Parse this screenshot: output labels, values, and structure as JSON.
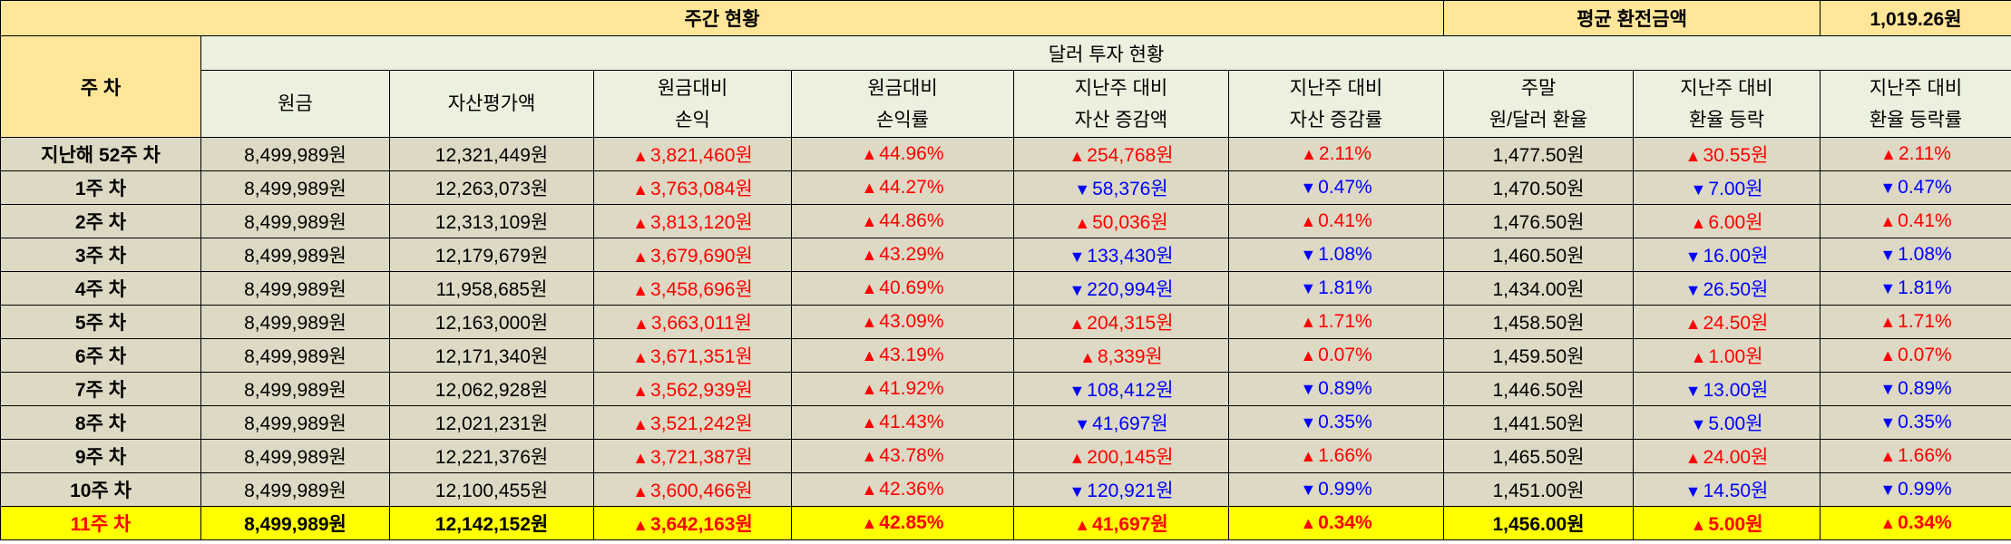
{
  "header": {
    "weekly_status": "주간 현황",
    "avg_exchange_label": "평균 환전금액",
    "avg_exchange_value": "1,019.26원",
    "week_col": "주 차",
    "dollar_invest_status": "달러 투자 현황"
  },
  "columns": [
    {
      "l1": "원금",
      "l2": ""
    },
    {
      "l1": "자산평가액",
      "l2": ""
    },
    {
      "l1": "원금대비",
      "l2": "손익"
    },
    {
      "l1": "원금대비",
      "l2": "손익률"
    },
    {
      "l1": "지난주 대비",
      "l2": "자산 증감액"
    },
    {
      "l1": "지난주 대비",
      "l2": "자산 증감률"
    },
    {
      "l1": "주말",
      "l2": "원/달러 환율"
    },
    {
      "l1": "지난주 대비",
      "l2": "환율 등락"
    },
    {
      "l1": "지난주 대비",
      "l2": "환율 등락률"
    }
  ],
  "symbols": {
    "up": "▲",
    "down": "▼"
  },
  "colors": {
    "header": "#ffe699",
    "subheader": "#ebf1de",
    "body": "#ddd9c4",
    "highlight": "#ffff00",
    "up": "#ff0000",
    "down": "#0000ff"
  },
  "rows": [
    {
      "week": "지난해 52주 차",
      "principal": "8,499,989원",
      "asset": "12,321,449원",
      "pl": "3,821,460원",
      "pl_dir": "up",
      "pl_rate": "44.96%",
      "pl_rate_dir": "up",
      "asset_chg": "254,768원",
      "asset_chg_dir": "up",
      "asset_chg_rate": "2.11%",
      "asset_chg_rate_dir": "up",
      "fx": "1,477.50원",
      "fx_chg": "30.55원",
      "fx_chg_dir": "up",
      "fx_chg_rate": "2.11%",
      "fx_chg_rate_dir": "up"
    },
    {
      "week": "1주 차",
      "principal": "8,499,989원",
      "asset": "12,263,073원",
      "pl": "3,763,084원",
      "pl_dir": "up",
      "pl_rate": "44.27%",
      "pl_rate_dir": "up",
      "asset_chg": "58,376원",
      "asset_chg_dir": "down",
      "asset_chg_rate": "0.47%",
      "asset_chg_rate_dir": "down",
      "fx": "1,470.50원",
      "fx_chg": "7.00원",
      "fx_chg_dir": "down",
      "fx_chg_rate": "0.47%",
      "fx_chg_rate_dir": "down"
    },
    {
      "week": "2주 차",
      "principal": "8,499,989원",
      "asset": "12,313,109원",
      "pl": "3,813,120원",
      "pl_dir": "up",
      "pl_rate": "44.86%",
      "pl_rate_dir": "up",
      "asset_chg": "50,036원",
      "asset_chg_dir": "up",
      "asset_chg_rate": "0.41%",
      "asset_chg_rate_dir": "up",
      "fx": "1,476.50원",
      "fx_chg": "6.00원",
      "fx_chg_dir": "up",
      "fx_chg_rate": "0.41%",
      "fx_chg_rate_dir": "up"
    },
    {
      "week": "3주 차",
      "principal": "8,499,989원",
      "asset": "12,179,679원",
      "pl": "3,679,690원",
      "pl_dir": "up",
      "pl_rate": "43.29%",
      "pl_rate_dir": "up",
      "asset_chg": "133,430원",
      "asset_chg_dir": "down",
      "asset_chg_rate": "1.08%",
      "asset_chg_rate_dir": "down",
      "fx": "1,460.50원",
      "fx_chg": "16.00원",
      "fx_chg_dir": "down",
      "fx_chg_rate": "1.08%",
      "fx_chg_rate_dir": "down"
    },
    {
      "week": "4주 차",
      "principal": "8,499,989원",
      "asset": "11,958,685원",
      "pl": "3,458,696원",
      "pl_dir": "up",
      "pl_rate": "40.69%",
      "pl_rate_dir": "up",
      "asset_chg": "220,994원",
      "asset_chg_dir": "down",
      "asset_chg_rate": "1.81%",
      "asset_chg_rate_dir": "down",
      "fx": "1,434.00원",
      "fx_chg": "26.50원",
      "fx_chg_dir": "down",
      "fx_chg_rate": "1.81%",
      "fx_chg_rate_dir": "down"
    },
    {
      "week": "5주 차",
      "principal": "8,499,989원",
      "asset": "12,163,000원",
      "pl": "3,663,011원",
      "pl_dir": "up",
      "pl_rate": "43.09%",
      "pl_rate_dir": "up",
      "asset_chg": "204,315원",
      "asset_chg_dir": "up",
      "asset_chg_rate": "1.71%",
      "asset_chg_rate_dir": "up",
      "fx": "1,458.50원",
      "fx_chg": "24.50원",
      "fx_chg_dir": "up",
      "fx_chg_rate": "1.71%",
      "fx_chg_rate_dir": "up"
    },
    {
      "week": "6주 차",
      "principal": "8,499,989원",
      "asset": "12,171,340원",
      "pl": "3,671,351원",
      "pl_dir": "up",
      "pl_rate": "43.19%",
      "pl_rate_dir": "up",
      "asset_chg": "8,339원",
      "asset_chg_dir": "up",
      "asset_chg_rate": "0.07%",
      "asset_chg_rate_dir": "up",
      "fx": "1,459.50원",
      "fx_chg": "1.00원",
      "fx_chg_dir": "up",
      "fx_chg_rate": "0.07%",
      "fx_chg_rate_dir": "up"
    },
    {
      "week": "7주 차",
      "principal": "8,499,989원",
      "asset": "12,062,928원",
      "pl": "3,562,939원",
      "pl_dir": "up",
      "pl_rate": "41.92%",
      "pl_rate_dir": "up",
      "asset_chg": "108,412원",
      "asset_chg_dir": "down",
      "asset_chg_rate": "0.89%",
      "asset_chg_rate_dir": "down",
      "fx": "1,446.50원",
      "fx_chg": "13.00원",
      "fx_chg_dir": "down",
      "fx_chg_rate": "0.89%",
      "fx_chg_rate_dir": "down"
    },
    {
      "week": "8주 차",
      "principal": "8,499,989원",
      "asset": "12,021,231원",
      "pl": "3,521,242원",
      "pl_dir": "up",
      "pl_rate": "41.43%",
      "pl_rate_dir": "up",
      "asset_chg": "41,697원",
      "asset_chg_dir": "down",
      "asset_chg_rate": "0.35%",
      "asset_chg_rate_dir": "down",
      "fx": "1,441.50원",
      "fx_chg": "5.00원",
      "fx_chg_dir": "down",
      "fx_chg_rate": "0.35%",
      "fx_chg_rate_dir": "down"
    },
    {
      "week": "9주 차",
      "principal": "8,499,989원",
      "asset": "12,221,376원",
      "pl": "3,721,387원",
      "pl_dir": "up",
      "pl_rate": "43.78%",
      "pl_rate_dir": "up",
      "asset_chg": "200,145원",
      "asset_chg_dir": "up",
      "asset_chg_rate": "1.66%",
      "asset_chg_rate_dir": "up",
      "fx": "1,465.50원",
      "fx_chg": "24.00원",
      "fx_chg_dir": "up",
      "fx_chg_rate": "1.66%",
      "fx_chg_rate_dir": "up"
    },
    {
      "week": "10주 차",
      "principal": "8,499,989원",
      "asset": "12,100,455원",
      "pl": "3,600,466원",
      "pl_dir": "up",
      "pl_rate": "42.36%",
      "pl_rate_dir": "up",
      "asset_chg": "120,921원",
      "asset_chg_dir": "down",
      "asset_chg_rate": "0.99%",
      "asset_chg_rate_dir": "down",
      "fx": "1,451.00원",
      "fx_chg": "14.50원",
      "fx_chg_dir": "down",
      "fx_chg_rate": "0.99%",
      "fx_chg_rate_dir": "down"
    },
    {
      "week": "11주 차",
      "principal": "8,499,989원",
      "asset": "12,142,152원",
      "pl": "3,642,163원",
      "pl_dir": "up",
      "pl_rate": "42.85%",
      "pl_rate_dir": "up",
      "asset_chg": "41,697원",
      "asset_chg_dir": "up",
      "asset_chg_rate": "0.34%",
      "asset_chg_rate_dir": "up",
      "fx": "1,456.00원",
      "fx_chg": "5.00원",
      "fx_chg_dir": "up",
      "fx_chg_rate": "0.34%",
      "fx_chg_rate_dir": "up",
      "highlight": true
    }
  ]
}
